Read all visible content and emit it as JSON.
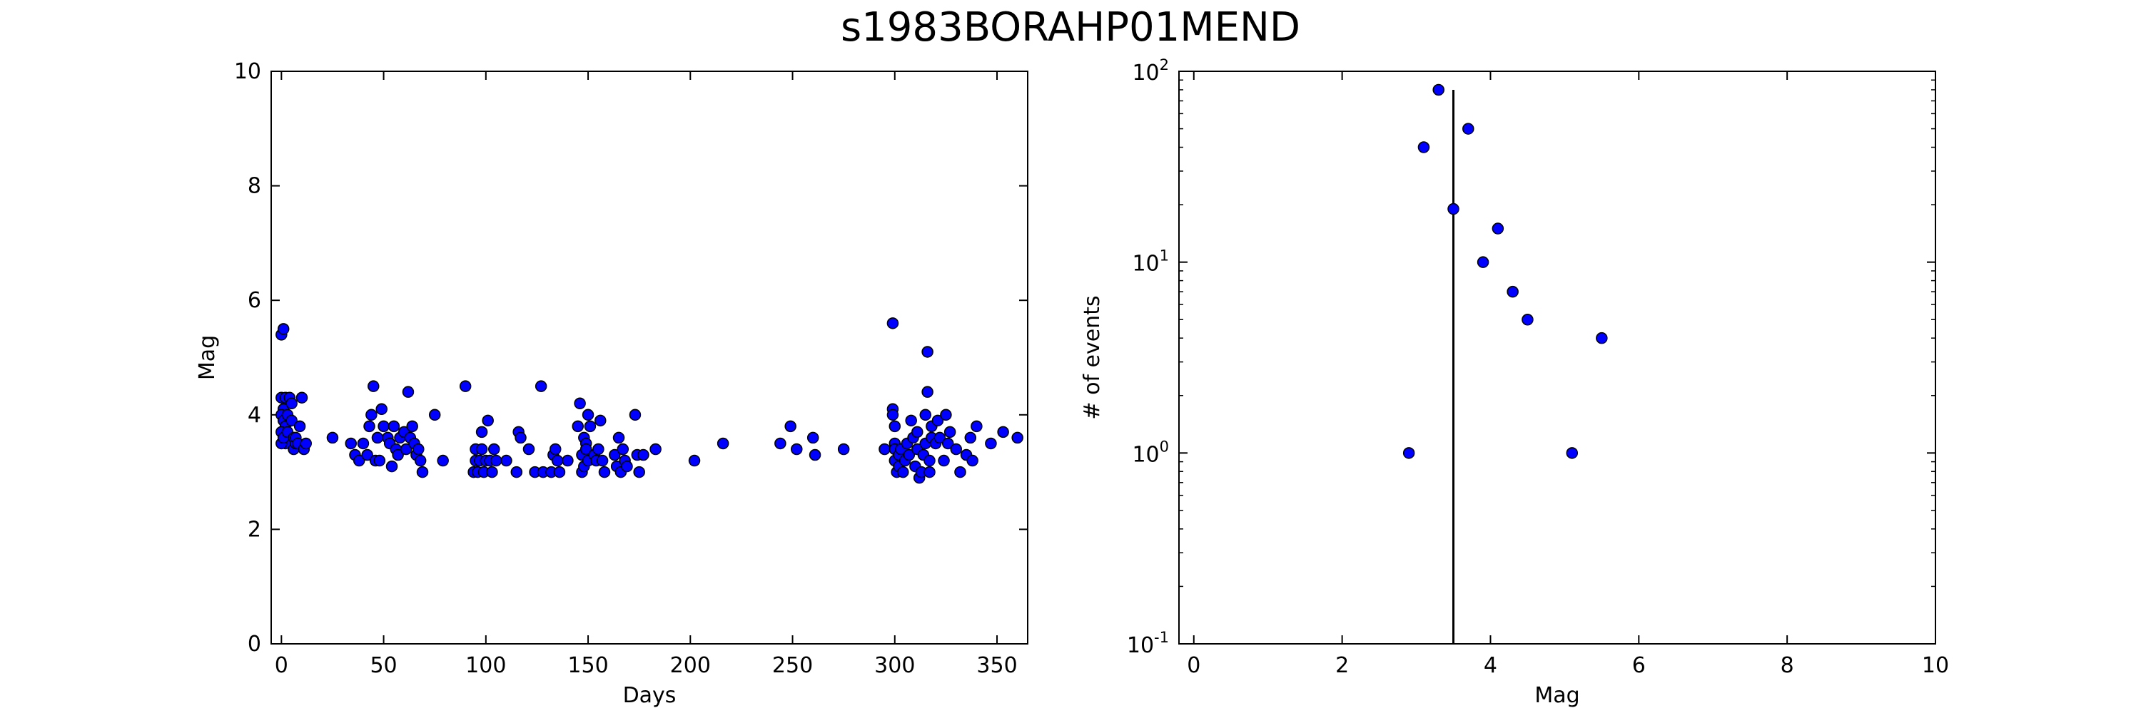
{
  "title": "s1983BORAHP01MEND",
  "colors": {
    "marker_fill": "#0000ff",
    "marker_edge": "#000000",
    "axes": "#000000"
  },
  "chart_data": [
    {
      "type": "scatter",
      "xlabel": "Days",
      "ylabel": "Mag",
      "xlim": [
        -5,
        365
      ],
      "ylim": [
        0,
        10
      ],
      "xticks": [
        0,
        50,
        100,
        150,
        200,
        250,
        300,
        350
      ],
      "yticks": [
        0,
        2,
        4,
        6,
        8,
        10
      ],
      "grid": false,
      "series": [
        {
          "points": [
            [
              0,
              5.4
            ],
            [
              1,
              5.5
            ],
            [
              0,
              4.3
            ],
            [
              1,
              4.1
            ],
            [
              2,
              4.3
            ],
            [
              0,
              4.0
            ],
            [
              1,
              3.9
            ],
            [
              2,
              3.8
            ],
            [
              0,
              3.7
            ],
            [
              1,
              3.6
            ],
            [
              2,
              3.5
            ],
            [
              0,
              3.5
            ],
            [
              1,
              3.6
            ],
            [
              3,
              3.7
            ],
            [
              3,
              4.0
            ],
            [
              4,
              4.3
            ],
            [
              5,
              4.2
            ],
            [
              5,
              3.9
            ],
            [
              6,
              3.6
            ],
            [
              6,
              3.4
            ],
            [
              7,
              3.5
            ],
            [
              7,
              3.6
            ],
            [
              8,
              3.5
            ],
            [
              9,
              3.8
            ],
            [
              10,
              4.3
            ],
            [
              11,
              3.4
            ],
            [
              12,
              3.5
            ],
            [
              25,
              3.6
            ],
            [
              34,
              3.5
            ],
            [
              36,
              3.3
            ],
            [
              38,
              3.2
            ],
            [
              40,
              3.5
            ],
            [
              42,
              3.3
            ],
            [
              43,
              3.8
            ],
            [
              44,
              4.0
            ],
            [
              45,
              4.5
            ],
            [
              46,
              3.2
            ],
            [
              47,
              3.6
            ],
            [
              48,
              3.2
            ],
            [
              49,
              4.1
            ],
            [
              50,
              3.8
            ],
            [
              52,
              3.6
            ],
            [
              53,
              3.5
            ],
            [
              54,
              3.1
            ],
            [
              55,
              3.8
            ],
            [
              56,
              3.4
            ],
            [
              57,
              3.3
            ],
            [
              58,
              3.6
            ],
            [
              60,
              3.7
            ],
            [
              61,
              3.4
            ],
            [
              62,
              4.4
            ],
            [
              63,
              3.6
            ],
            [
              64,
              3.8
            ],
            [
              65,
              3.5
            ],
            [
              66,
              3.3
            ],
            [
              67,
              3.4
            ],
            [
              68,
              3.2
            ],
            [
              69,
              3.0
            ],
            [
              75,
              4.0
            ],
            [
              79,
              3.2
            ],
            [
              90,
              4.5
            ],
            [
              94,
              3.0
            ],
            [
              95,
              3.2
            ],
            [
              95,
              3.4
            ],
            [
              96,
              3.0
            ],
            [
              97,
              3.2
            ],
            [
              98,
              3.4
            ],
            [
              98,
              3.7
            ],
            [
              99,
              3.0
            ],
            [
              100,
              3.2
            ],
            [
              101,
              3.9
            ],
            [
              102,
              3.2
            ],
            [
              103,
              3.0
            ],
            [
              104,
              3.4
            ],
            [
              105,
              3.2
            ],
            [
              110,
              3.2
            ],
            [
              115,
              3.0
            ],
            [
              116,
              3.7
            ],
            [
              117,
              3.6
            ],
            [
              121,
              3.4
            ],
            [
              124,
              3.0
            ],
            [
              127,
              4.5
            ],
            [
              128,
              3.0
            ],
            [
              132,
              3.0
            ],
            [
              133,
              3.3
            ],
            [
              134,
              3.4
            ],
            [
              135,
              3.2
            ],
            [
              136,
              3.0
            ],
            [
              140,
              3.2
            ],
            [
              145,
              3.8
            ],
            [
              146,
              4.2
            ],
            [
              147,
              3.3
            ],
            [
              147,
              3.0
            ],
            [
              148,
              3.6
            ],
            [
              148,
              3.1
            ],
            [
              149,
              3.5
            ],
            [
              149,
              3.4
            ],
            [
              150,
              4.0
            ],
            [
              150,
              3.2
            ],
            [
              151,
              3.8
            ],
            [
              153,
              3.3
            ],
            [
              154,
              3.2
            ],
            [
              155,
              3.4
            ],
            [
              156,
              3.9
            ],
            [
              157,
              3.2
            ],
            [
              158,
              3.0
            ],
            [
              163,
              3.3
            ],
            [
              164,
              3.1
            ],
            [
              165,
              3.6
            ],
            [
              166,
              3.0
            ],
            [
              167,
              3.4
            ],
            [
              168,
              3.2
            ],
            [
              169,
              3.1
            ],
            [
              173,
              4.0
            ],
            [
              174,
              3.3
            ],
            [
              175,
              3.0
            ],
            [
              177,
              3.3
            ],
            [
              183,
              3.4
            ],
            [
              202,
              3.2
            ],
            [
              216,
              3.5
            ],
            [
              244,
              3.5
            ],
            [
              249,
              3.8
            ],
            [
              252,
              3.4
            ],
            [
              260,
              3.6
            ],
            [
              261,
              3.3
            ],
            [
              275,
              3.4
            ],
            [
              295,
              3.4
            ],
            [
              299,
              5.6
            ],
            [
              299,
              4.1
            ],
            [
              299,
              4.0
            ],
            [
              300,
              3.8
            ],
            [
              300,
              3.5
            ],
            [
              300,
              3.4
            ],
            [
              300,
              3.2
            ],
            [
              301,
              3.0
            ],
            [
              302,
              3.3
            ],
            [
              302,
              3.1
            ],
            [
              303,
              3.4
            ],
            [
              304,
              3.0
            ],
            [
              305,
              3.2
            ],
            [
              306,
              3.5
            ],
            [
              307,
              3.3
            ],
            [
              308,
              3.9
            ],
            [
              309,
              3.6
            ],
            [
              310,
              3.1
            ],
            [
              311,
              3.7
            ],
            [
              311,
              3.4
            ],
            [
              312,
              2.9
            ],
            [
              313,
              3.0
            ],
            [
              314,
              3.3
            ],
            [
              315,
              3.5
            ],
            [
              315,
              4.0
            ],
            [
              316,
              5.1
            ],
            [
              316,
              4.4
            ],
            [
              317,
              3.2
            ],
            [
              317,
              3.0
            ],
            [
              318,
              3.8
            ],
            [
              318,
              3.6
            ],
            [
              320,
              3.5
            ],
            [
              321,
              3.9
            ],
            [
              322,
              3.6
            ],
            [
              324,
              3.2
            ],
            [
              325,
              4.0
            ],
            [
              326,
              3.5
            ],
            [
              327,
              3.7
            ],
            [
              330,
              3.4
            ],
            [
              332,
              3.0
            ],
            [
              335,
              3.3
            ],
            [
              337,
              3.6
            ],
            [
              338,
              3.2
            ],
            [
              340,
              3.8
            ],
            [
              347,
              3.5
            ],
            [
              353,
              3.7
            ],
            [
              360,
              3.6
            ]
          ]
        }
      ]
    },
    {
      "type": "scatter",
      "xlabel": "Mag",
      "ylabel": "# of events",
      "xlim": [
        -0.2,
        10
      ],
      "ylim": [
        0.1,
        100
      ],
      "yscale": "log",
      "xticks": [
        0,
        2,
        4,
        6,
        8,
        10
      ],
      "yticks": [
        {
          "base": "10",
          "exp": "-1",
          "value": 0.1
        },
        {
          "base": "10",
          "exp": "0",
          "value": 1
        },
        {
          "base": "10",
          "exp": "1",
          "value": 10
        },
        {
          "base": "10",
          "exp": "2",
          "value": 100
        }
      ],
      "grid": false,
      "series": [
        {
          "points": [
            [
              2.9,
              1
            ],
            [
              3.1,
              40
            ],
            [
              3.3,
              80
            ],
            [
              3.5,
              19
            ],
            [
              3.7,
              50
            ],
            [
              3.9,
              10
            ],
            [
              4.1,
              15
            ],
            [
              4.3,
              7
            ],
            [
              4.5,
              5
            ],
            [
              5.1,
              1
            ],
            [
              5.5,
              4
            ]
          ]
        }
      ],
      "vline": {
        "x": 3.5,
        "y_from": 0.1,
        "y_to": 80
      }
    }
  ]
}
